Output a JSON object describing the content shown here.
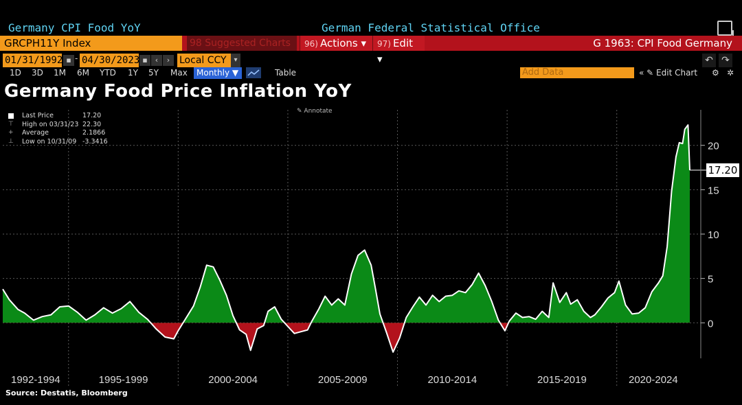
{
  "terminal": {
    "security_name": "Germany CPI Food YoY",
    "source_name": "German Federal Statistical Office",
    "ticker": "GRCPH11Y Index",
    "suggested_label": "98 Suggested Charts",
    "actions": {
      "num": "96)",
      "label": "Actions"
    },
    "edit": {
      "num": "97)",
      "label": "Edit"
    },
    "chart_id": "G 1963: CPI Food Germany",
    "start_date": "01/31/1992",
    "end_date": "04/30/2023",
    "currency": "Local CCY",
    "periods": [
      "1D",
      "3D",
      "1M",
      "6M",
      "YTD",
      "1Y",
      "5Y",
      "Max"
    ],
    "frequency": "Monthly",
    "table_label": "Table",
    "add_data_placeholder": "Add Data",
    "edit_chart_label": "Edit Chart",
    "annotate_label": "Annotate"
  },
  "colors": {
    "positive_fill": "#0b8a17",
    "negative_fill": "#b3121c",
    "line": "#ffffff",
    "grid": "#5a5a5a",
    "accent_orange": "#f39a1b",
    "header_red": "#b3121c",
    "cyan_text": "#5fd3f3"
  },
  "legend": [
    {
      "label": "Last Price",
      "value": "17.20"
    },
    {
      "label": "High on 03/31/23",
      "value": "22.30"
    },
    {
      "label": "Average",
      "value": "2.1866"
    },
    {
      "label": "Low on 10/31/09",
      "value": "-3.3416"
    }
  ],
  "last_value_label": "17.20",
  "source": "Source: Destatis, Bloomberg",
  "chart_data": {
    "type": "area",
    "title": "Germany Food Price Inflation YoY",
    "xlabel": "",
    "ylabel": "",
    "x_range": [
      1992.0,
      2023.33
    ],
    "ylim": [
      -4.0,
      24.0
    ],
    "y_ticks": [
      0,
      5,
      10,
      15,
      20
    ],
    "x_tick_labels": [
      "1992-1994",
      "1995-1999",
      "2000-2004",
      "2005-2009",
      "2010-2014",
      "2015-2019",
      "2020-2024"
    ],
    "x_tick_boundaries": [
      1995,
      2000,
      2005,
      2010,
      2015,
      2020
    ],
    "grid": true,
    "series": [
      {
        "points": [
          [
            1992.0,
            3.8
          ],
          [
            1992.3,
            2.6
          ],
          [
            1992.7,
            1.5
          ],
          [
            1993.0,
            1.1
          ],
          [
            1993.4,
            0.3
          ],
          [
            1993.8,
            0.7
          ],
          [
            1994.2,
            0.9
          ],
          [
            1994.6,
            1.8
          ],
          [
            1995.0,
            1.9
          ],
          [
            1995.4,
            1.2
          ],
          [
            1995.8,
            0.3
          ],
          [
            1996.2,
            0.9
          ],
          [
            1996.6,
            1.7
          ],
          [
            1997.0,
            1.1
          ],
          [
            1997.4,
            1.6
          ],
          [
            1997.8,
            2.4
          ],
          [
            1998.2,
            1.2
          ],
          [
            1998.6,
            0.4
          ],
          [
            1999.0,
            -0.7
          ],
          [
            1999.4,
            -1.6
          ],
          [
            1999.8,
            -1.8
          ],
          [
            2000.0,
            -0.9
          ],
          [
            2000.3,
            0.3
          ],
          [
            2000.7,
            1.9
          ],
          [
            2001.0,
            4.0
          ],
          [
            2001.3,
            6.5
          ],
          [
            2001.6,
            6.3
          ],
          [
            2001.9,
            4.8
          ],
          [
            2002.2,
            3.1
          ],
          [
            2002.5,
            0.8
          ],
          [
            2002.8,
            -0.8
          ],
          [
            2003.1,
            -1.3
          ],
          [
            2003.3,
            -3.1
          ],
          [
            2003.6,
            -0.7
          ],
          [
            2003.9,
            -0.3
          ],
          [
            2004.1,
            1.3
          ],
          [
            2004.4,
            1.8
          ],
          [
            2004.7,
            0.4
          ],
          [
            2005.0,
            -0.4
          ],
          [
            2005.3,
            -1.2
          ],
          [
            2005.6,
            -1.0
          ],
          [
            2005.9,
            -0.8
          ],
          [
            2006.1,
            0.2
          ],
          [
            2006.4,
            1.5
          ],
          [
            2006.7,
            3.0
          ],
          [
            2007.0,
            2.0
          ],
          [
            2007.3,
            2.7
          ],
          [
            2007.6,
            2.0
          ],
          [
            2007.9,
            5.5
          ],
          [
            2008.2,
            7.6
          ],
          [
            2008.5,
            8.2
          ],
          [
            2008.8,
            6.5
          ],
          [
            2009.0,
            3.8
          ],
          [
            2009.2,
            1.0
          ],
          [
            2009.5,
            -1.1
          ],
          [
            2009.8,
            -3.3
          ],
          [
            2010.1,
            -1.7
          ],
          [
            2010.4,
            0.6
          ],
          [
            2010.7,
            1.8
          ],
          [
            2011.0,
            2.9
          ],
          [
            2011.3,
            2.0
          ],
          [
            2011.6,
            3.1
          ],
          [
            2011.9,
            2.4
          ],
          [
            2012.2,
            3.0
          ],
          [
            2012.5,
            3.1
          ],
          [
            2012.8,
            3.6
          ],
          [
            2013.1,
            3.4
          ],
          [
            2013.4,
            4.3
          ],
          [
            2013.7,
            5.6
          ],
          [
            2014.0,
            4.2
          ],
          [
            2014.3,
            2.4
          ],
          [
            2014.6,
            0.3
          ],
          [
            2014.9,
            -0.9
          ],
          [
            2015.1,
            0.2
          ],
          [
            2015.4,
            1.1
          ],
          [
            2015.7,
            0.6
          ],
          [
            2016.0,
            0.7
          ],
          [
            2016.3,
            0.4
          ],
          [
            2016.6,
            1.3
          ],
          [
            2016.9,
            0.6
          ],
          [
            2017.1,
            4.5
          ],
          [
            2017.4,
            2.3
          ],
          [
            2017.7,
            3.4
          ],
          [
            2017.9,
            2.1
          ],
          [
            2018.2,
            2.6
          ],
          [
            2018.5,
            1.3
          ],
          [
            2018.8,
            0.6
          ],
          [
            2019.0,
            0.9
          ],
          [
            2019.3,
            1.8
          ],
          [
            2019.6,
            2.8
          ],
          [
            2019.9,
            3.4
          ],
          [
            2020.1,
            4.7
          ],
          [
            2020.4,
            2.0
          ],
          [
            2020.7,
            1.0
          ],
          [
            2021.0,
            1.1
          ],
          [
            2021.3,
            1.7
          ],
          [
            2021.6,
            3.5
          ],
          [
            2021.9,
            4.5
          ],
          [
            2022.1,
            5.3
          ],
          [
            2022.3,
            8.6
          ],
          [
            2022.5,
            14.8
          ],
          [
            2022.7,
            18.7
          ],
          [
            2022.85,
            20.3
          ],
          [
            2023.0,
            20.2
          ],
          [
            2023.1,
            21.8
          ],
          [
            2023.25,
            22.3
          ],
          [
            2023.33,
            17.2
          ]
        ]
      }
    ]
  }
}
